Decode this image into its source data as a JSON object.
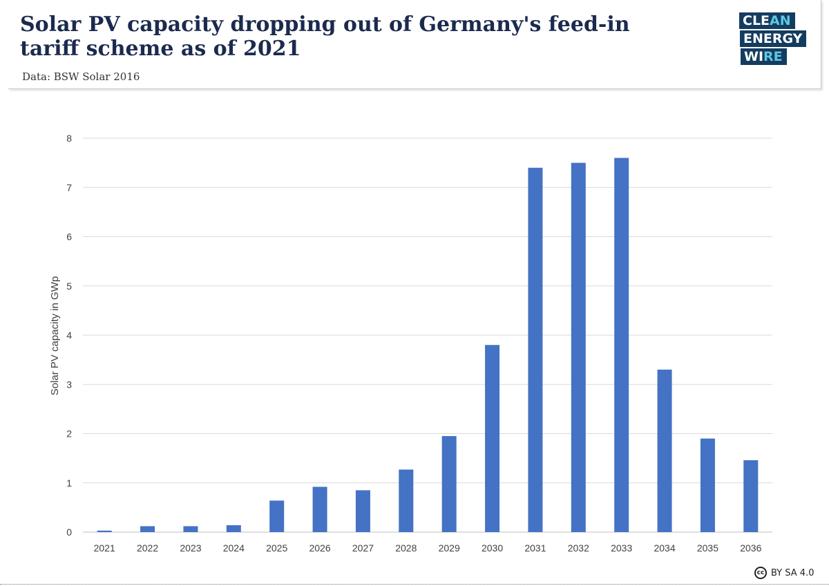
{
  "header": {
    "title": "Solar PV capacity dropping out of Germany's feed-in tariff scheme as of 2021",
    "source": "Data: BSW Solar 2016"
  },
  "logo": {
    "line1_a": "CLE",
    "line1_b": "AN",
    "line2": "ENERGY",
    "line3_a": "WI",
    "line3_b": "RE",
    "colors": {
      "box": "#143c5f",
      "text": "#ffffff",
      "accent": "#5cc8e6"
    }
  },
  "license": {
    "icon_text": "cc",
    "text": "BY SA 4.0"
  },
  "chart_data": {
    "type": "bar",
    "categories": [
      "2021",
      "2022",
      "2023",
      "2024",
      "2025",
      "2026",
      "2027",
      "2028",
      "2029",
      "2030",
      "2031",
      "2032",
      "2033",
      "2034",
      "2035",
      "2036"
    ],
    "values": [
      0.03,
      0.12,
      0.12,
      0.14,
      0.64,
      0.92,
      0.85,
      1.27,
      1.95,
      3.8,
      7.4,
      7.5,
      7.6,
      3.3,
      1.9,
      1.46
    ],
    "ylabel": "Solar PV capacity in GWp",
    "ylim": [
      0,
      8
    ],
    "yticks": [
      "0",
      "1",
      "2",
      "3",
      "4",
      "5",
      "6",
      "7",
      "8"
    ],
    "grid": true,
    "bar_color": "#4472c4"
  }
}
